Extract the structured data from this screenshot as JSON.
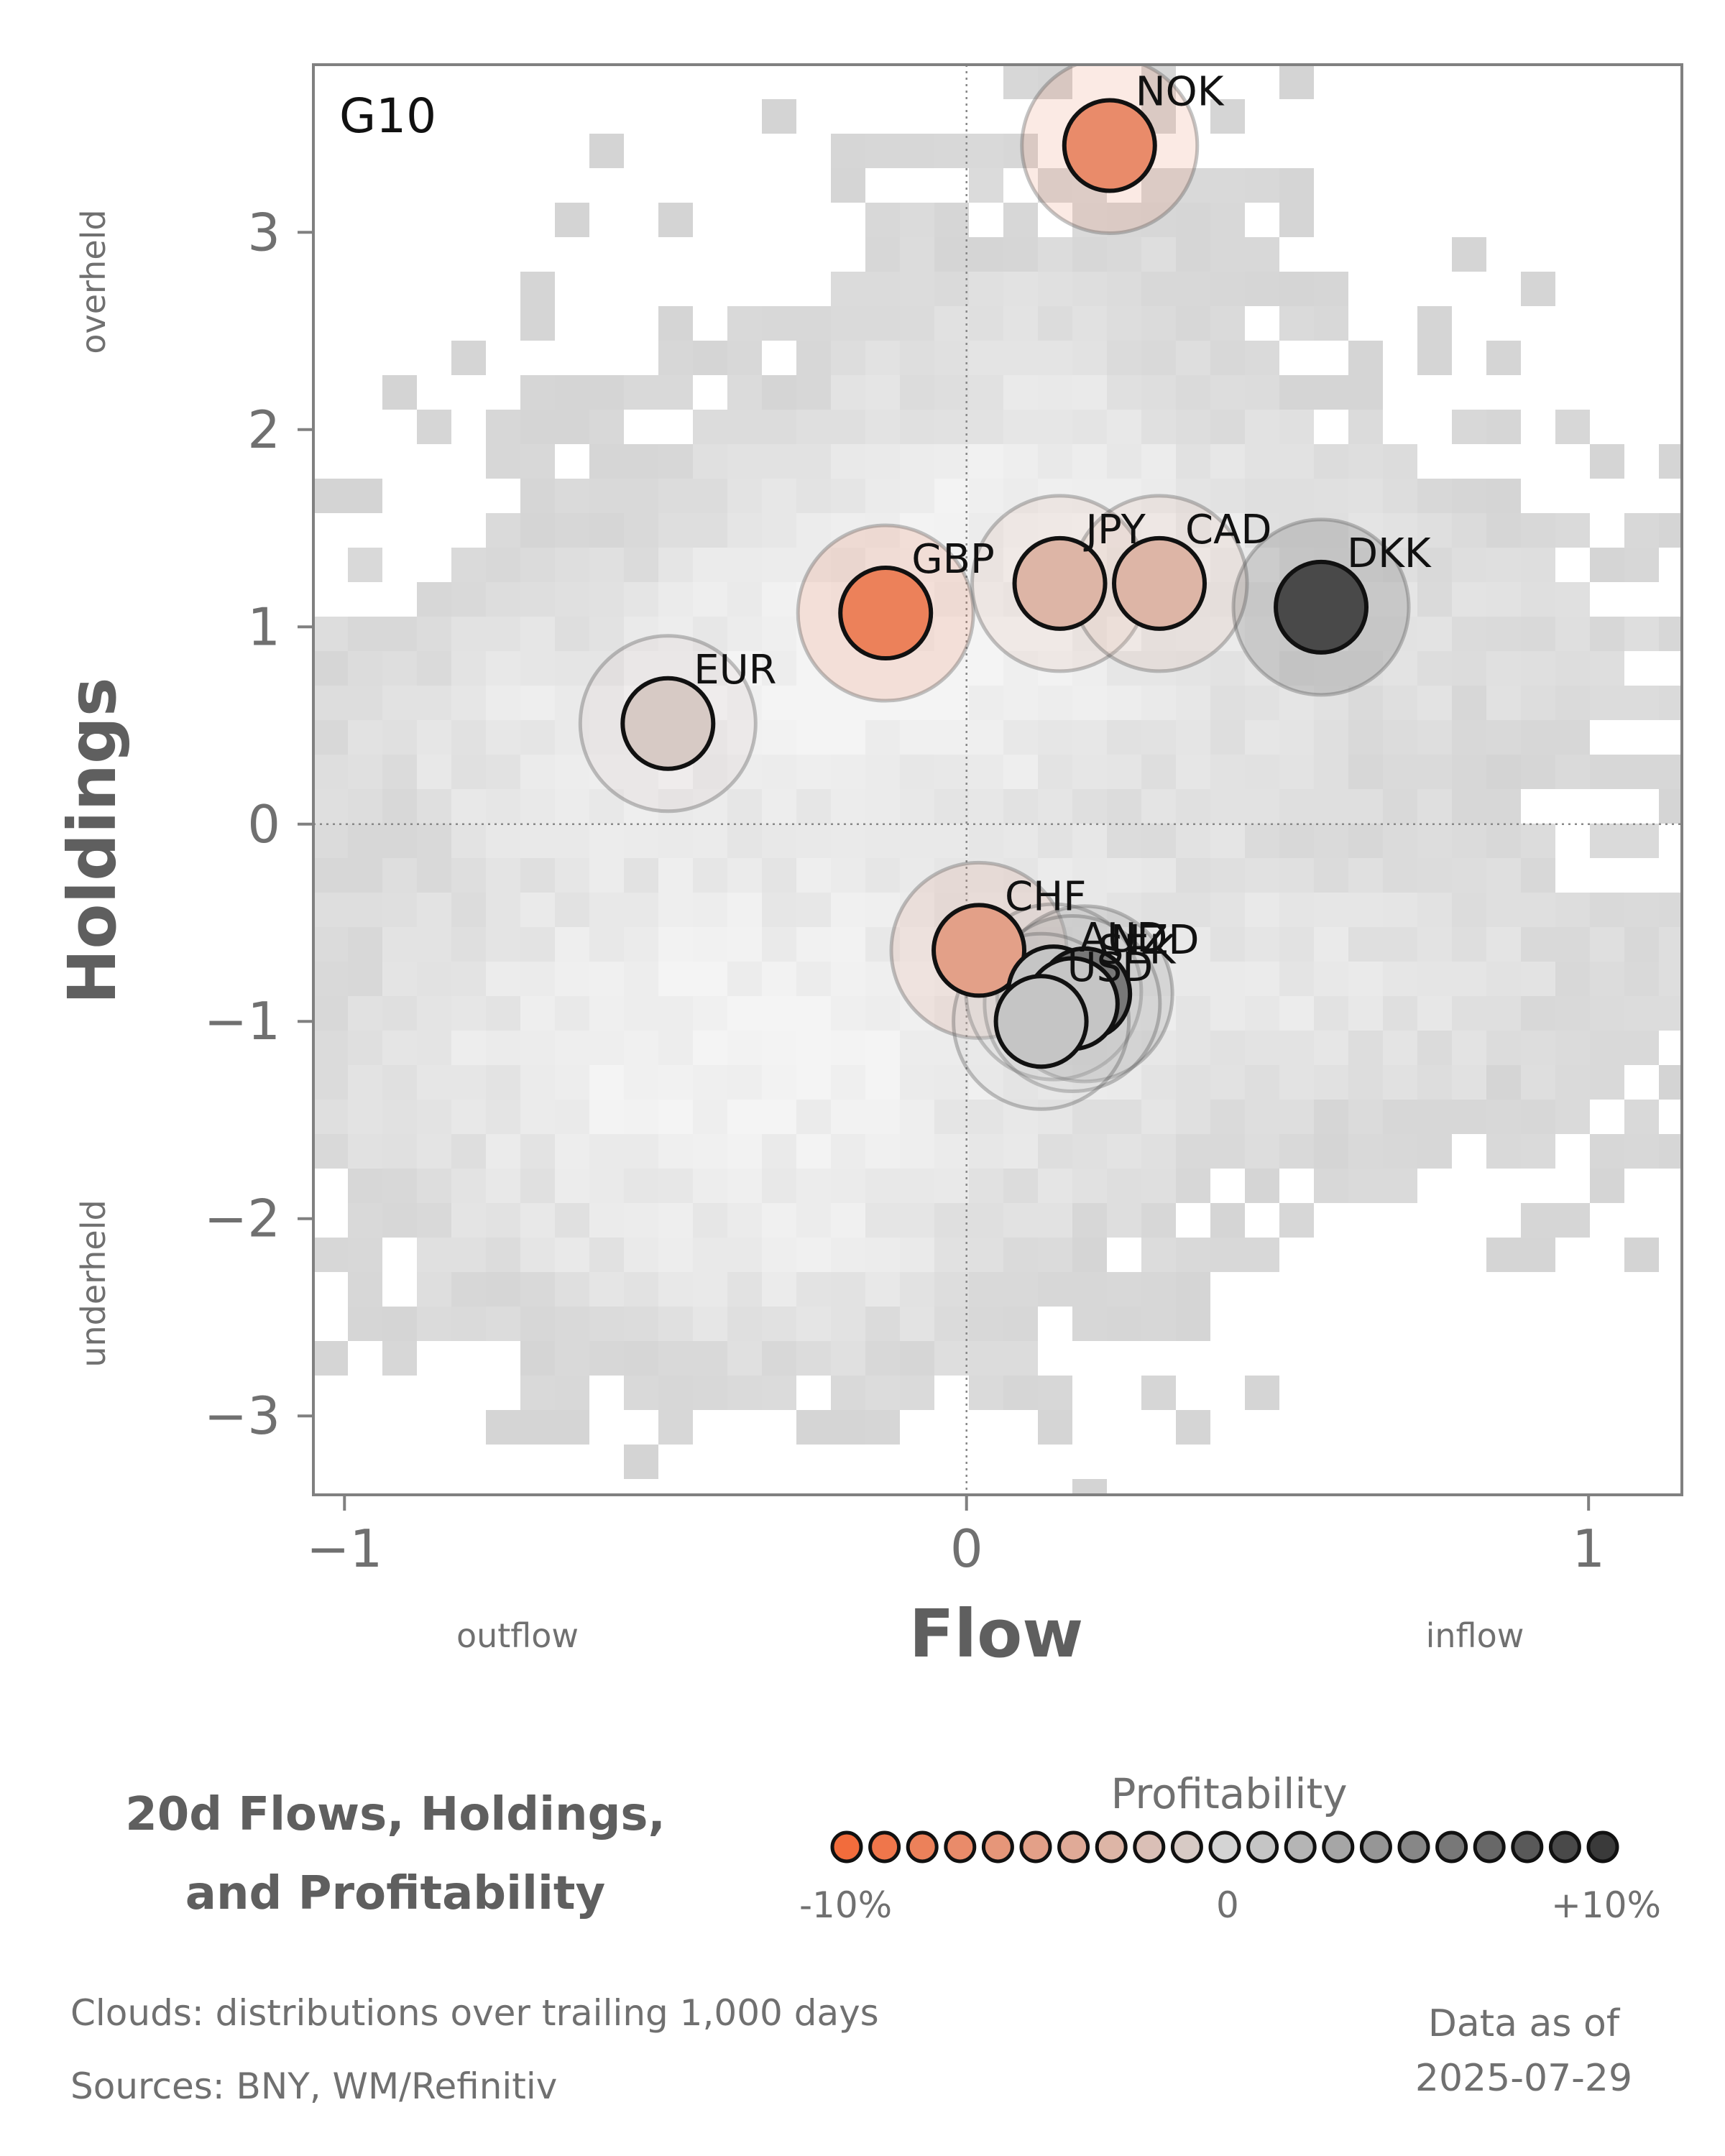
{
  "chart_data": {
    "type": "scatter",
    "panel_label": "G10",
    "xlabel": "Flow",
    "ylabel": "Holdings",
    "x_annotations": {
      "left": "outflow",
      "right": "inflow"
    },
    "y_annotations": {
      "top": "overheld",
      "bottom": "underheld"
    },
    "xlim": [
      -1.05,
      1.15
    ],
    "ylim": [
      -3.4,
      3.85
    ],
    "xticks": [
      -1,
      0,
      1
    ],
    "xtick_labels": [
      "−1",
      "0",
      "1"
    ],
    "yticks": [
      -3,
      -2,
      -1,
      0,
      1,
      2,
      3
    ],
    "ytick_labels": [
      "−3",
      "−2",
      "−1",
      "0",
      "1",
      "2",
      "3"
    ],
    "reference_lines": {
      "x": 0,
      "y": 0,
      "style": "dotted"
    },
    "background": "heatmap clouds (2D histogram density, grayscale)",
    "points": [
      {
        "label": "NOK",
        "x": 0.23,
        "y": 3.44,
        "profitability": -7
      },
      {
        "label": "GBP",
        "x": -0.13,
        "y": 1.07,
        "profitability": -8
      },
      {
        "label": "JPY",
        "x": 0.15,
        "y": 1.22,
        "profitability": -3
      },
      {
        "label": "CAD",
        "x": 0.31,
        "y": 1.22,
        "profitability": -3
      },
      {
        "label": "DKK",
        "x": 0.57,
        "y": 1.1,
        "profitability": 9
      },
      {
        "label": "EUR",
        "x": -0.48,
        "y": 0.51,
        "profitability": -1
      },
      {
        "label": "CHF",
        "x": 0.02,
        "y": -0.64,
        "profitability": -5
      },
      {
        "label": "AUD",
        "x": 0.14,
        "y": -0.85,
        "profitability": 1
      },
      {
        "label": "NZD",
        "x": 0.19,
        "y": -0.86,
        "profitability": 6
      },
      {
        "label": "SEK",
        "x": 0.17,
        "y": -0.91,
        "profitability": 1
      },
      {
        "label": "USD",
        "x": 0.12,
        "y": -1.0,
        "profitability": 1
      }
    ],
    "color_scale": {
      "title": "Profitability",
      "min_label": "-10%",
      "mid_label": "0",
      "max_label": "+10%",
      "negative_color": "#f26c3c",
      "neutral_color": "#d4d4d4",
      "positive_color": "#3a3a3a"
    }
  },
  "legend": {
    "title_line1": "20d Flows, Holdings,",
    "title_line2": "and Profitability"
  },
  "footer": {
    "clouds_note": "Clouds:  distributions over trailing 1,000 days",
    "sources": "Sources:  BNY, WM/Refinitiv",
    "as_of_label": "Data as of",
    "as_of_date": "2025-07-29"
  }
}
